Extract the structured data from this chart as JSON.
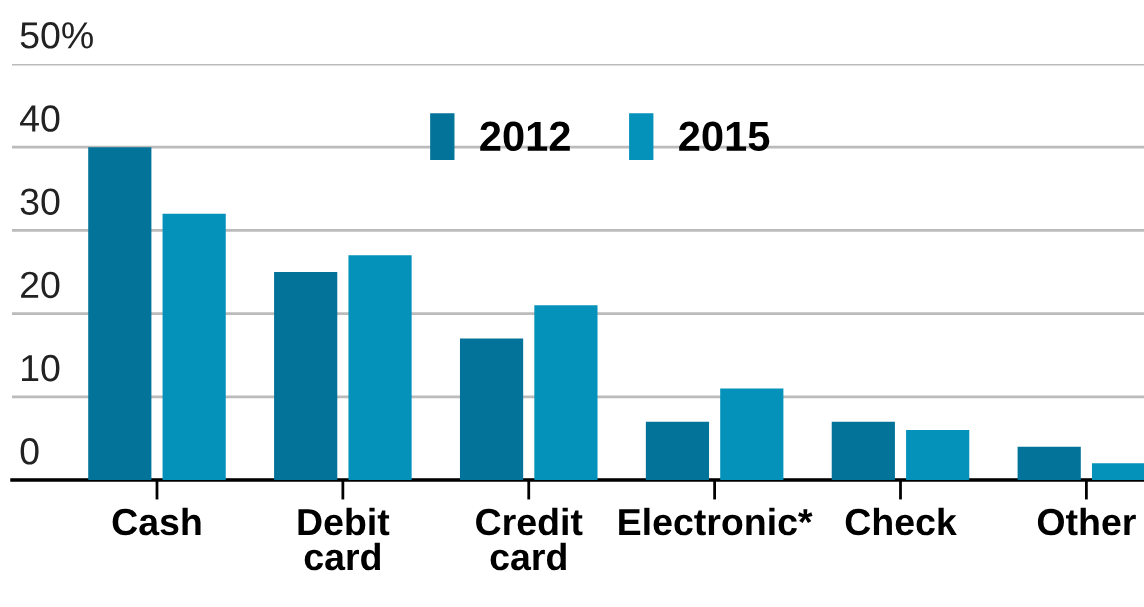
{
  "chart_data": {
    "type": "bar",
    "categories": [
      "Cash",
      "Debit\ncard",
      "Credit\ncard",
      "Electronic*",
      "Check",
      "Other"
    ],
    "series": [
      {
        "name": "2012",
        "color": "#047399",
        "values": [
          40,
          25,
          17,
          7,
          7,
          4
        ]
      },
      {
        "name": "2015",
        "color": "#0492bb",
        "values": [
          32,
          27,
          21,
          11,
          6,
          2
        ]
      }
    ],
    "ylim": [
      0,
      50
    ],
    "yticks": [
      0,
      10,
      20,
      30,
      40,
      {
        "value": 50,
        "label": "50%"
      }
    ],
    "grid": "y",
    "legend": "top"
  }
}
